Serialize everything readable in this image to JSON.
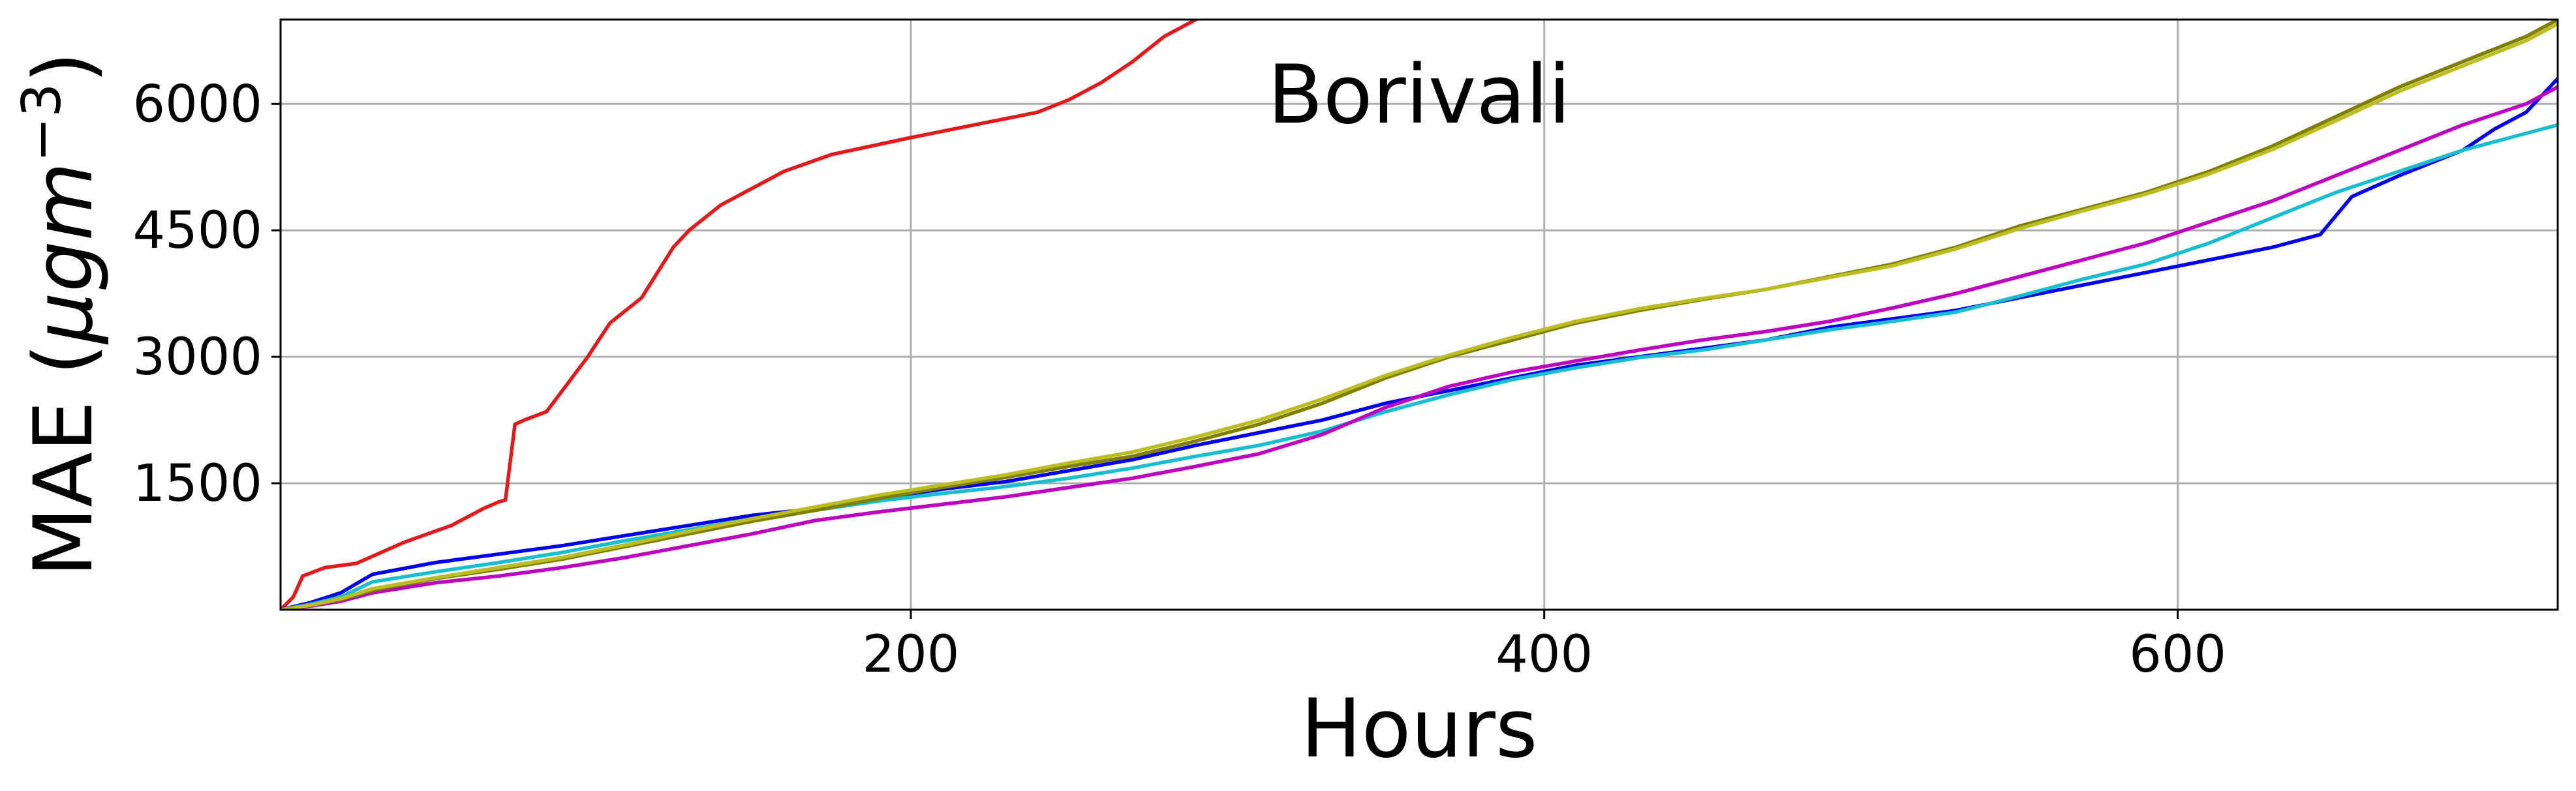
{
  "chart_data": {
    "type": "line",
    "title": "Borivali",
    "xlabel": "Hours",
    "ylabel_prefix": "MAE (",
    "ylabel_unit_base": "μgm",
    "ylabel_unit_exp": "−3",
    "ylabel_suffix": ")",
    "xlim": [
      1,
      720
    ],
    "ylim": [
      0,
      7000
    ],
    "xticks": [
      200,
      400,
      600
    ],
    "yticks": [
      1500,
      3000,
      4500,
      6000
    ],
    "xtick_labels": [
      "200",
      "400",
      "600"
    ],
    "ytick_labels": [
      "1500",
      "3000",
      "4500",
      "6000"
    ],
    "grid": true,
    "series": [
      {
        "color": "#e31a1c",
        "x": [
          1,
          5,
          8,
          15,
          25,
          40,
          55,
          65,
          70,
          72,
          75,
          78,
          85,
          92,
          98,
          105,
          115,
          125,
          130,
          140,
          150,
          160,
          175,
          200,
          220,
          240,
          250,
          260,
          270,
          280,
          290
        ],
        "y": [
          0,
          150,
          400,
          500,
          550,
          800,
          1000,
          1200,
          1280,
          1300,
          2200,
          2250,
          2350,
          2700,
          3000,
          3400,
          3700,
          4300,
          4500,
          4800,
          5000,
          5200,
          5400,
          5600,
          5750,
          5900,
          6050,
          6250,
          6500,
          6800,
          7000
        ]
      },
      {
        "color": "#0000ee",
        "x": [
          1,
          10,
          20,
          30,
          50,
          70,
          90,
          110,
          130,
          150,
          170,
          190,
          210,
          230,
          250,
          270,
          290,
          310,
          330,
          350,
          370,
          390,
          410,
          430,
          450,
          470,
          490,
          510,
          530,
          550,
          570,
          590,
          610,
          630,
          645,
          655,
          670,
          690,
          700,
          710,
          720
        ],
        "y": [
          0,
          80,
          200,
          420,
          560,
          660,
          760,
          880,
          1000,
          1120,
          1200,
          1320,
          1430,
          1520,
          1650,
          1780,
          1950,
          2100,
          2250,
          2450,
          2600,
          2750,
          2900,
          3000,
          3100,
          3200,
          3350,
          3450,
          3550,
          3700,
          3850,
          4000,
          4150,
          4300,
          4450,
          4900,
          5150,
          5450,
          5700,
          5900,
          6300
        ]
      },
      {
        "color": "#17becf",
        "x": [
          1,
          10,
          20,
          30,
          50,
          70,
          90,
          110,
          130,
          150,
          170,
          190,
          210,
          230,
          250,
          270,
          290,
          310,
          330,
          350,
          370,
          390,
          410,
          430,
          450,
          470,
          490,
          510,
          530,
          550,
          570,
          590,
          610,
          630,
          650,
          670,
          690,
          710,
          720
        ],
        "y": [
          0,
          60,
          150,
          330,
          450,
          560,
          680,
          820,
          950,
          1080,
          1180,
          1290,
          1380,
          1460,
          1560,
          1680,
          1820,
          1950,
          2120,
          2350,
          2550,
          2730,
          2870,
          2990,
          3080,
          3200,
          3320,
          3420,
          3530,
          3720,
          3920,
          4100,
          4350,
          4650,
          4950,
          5200,
          5450,
          5650,
          5750
        ]
      },
      {
        "color": "#c000c0",
        "x": [
          1,
          10,
          20,
          30,
          50,
          70,
          90,
          110,
          130,
          150,
          170,
          190,
          210,
          230,
          250,
          270,
          290,
          310,
          330,
          350,
          370,
          390,
          410,
          430,
          450,
          470,
          490,
          510,
          530,
          550,
          570,
          590,
          610,
          630,
          650,
          670,
          690,
          710,
          720
        ],
        "y": [
          0,
          40,
          100,
          200,
          320,
          400,
          500,
          620,
          760,
          900,
          1060,
          1160,
          1250,
          1340,
          1450,
          1560,
          1700,
          1850,
          2080,
          2400,
          2650,
          2820,
          2950,
          3080,
          3200,
          3300,
          3420,
          3580,
          3750,
          3950,
          4150,
          4350,
          4600,
          4850,
          5150,
          5450,
          5750,
          6000,
          6200
        ]
      },
      {
        "color": "#808000",
        "x": [
          1,
          10,
          20,
          30,
          50,
          70,
          90,
          110,
          130,
          150,
          170,
          190,
          210,
          230,
          250,
          270,
          290,
          310,
          330,
          350,
          370,
          390,
          410,
          430,
          450,
          470,
          490,
          510,
          530,
          550,
          570,
          590,
          610,
          630,
          650,
          670,
          690,
          710,
          720
        ],
        "y": [
          0,
          50,
          120,
          230,
          370,
          480,
          600,
          750,
          900,
          1050,
          1180,
          1320,
          1450,
          1570,
          1700,
          1820,
          2000,
          2200,
          2450,
          2750,
          3000,
          3200,
          3400,
          3550,
          3680,
          3800,
          3950,
          4100,
          4300,
          4550,
          4750,
          4950,
          5200,
          5500,
          5850,
          6200,
          6500,
          6800,
          7000
        ]
      },
      {
        "color": "#bcbd22",
        "x": [
          1,
          10,
          20,
          30,
          50,
          70,
          90,
          110,
          130,
          150,
          170,
          190,
          210,
          230,
          250,
          270,
          290,
          310,
          330,
          350,
          370,
          390,
          410,
          430,
          450,
          470,
          490,
          510,
          530,
          550,
          570,
          590,
          610,
          630,
          650,
          670,
          690,
          710,
          720
        ],
        "y": [
          0,
          50,
          130,
          250,
          380,
          500,
          620,
          770,
          930,
          1080,
          1220,
          1360,
          1480,
          1600,
          1740,
          1870,
          2050,
          2250,
          2500,
          2780,
          3020,
          3230,
          3420,
          3570,
          3690,
          3800,
          3940,
          4080,
          4280,
          4520,
          4730,
          4930,
          5170,
          5460,
          5800,
          6150,
          6450,
          6750,
          6950
        ]
      }
    ]
  }
}
